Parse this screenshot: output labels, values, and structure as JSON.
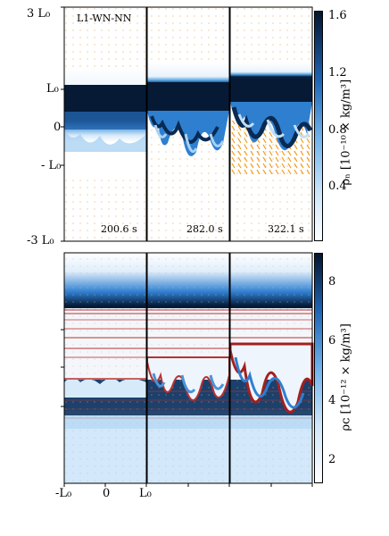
{
  "top": {
    "run_label": "L1-WN-NN",
    "y_ticks": [
      "3 L₀",
      "L₀",
      "0",
      "- L₀",
      "-3 L₀"
    ],
    "times": [
      "200.6 s",
      "282.0 s",
      "322.1 s"
    ],
    "colorbar": {
      "ticks": [
        "1.6",
        "1.2",
        "0.8",
        "0.4"
      ],
      "label": "ρₙ [10⁻¹⁰ × kg/m³]"
    }
  },
  "bottom": {
    "x_ticks": [
      "-L₀",
      "0",
      "L₀"
    ],
    "colorbar": {
      "ticks": [
        "8",
        "6",
        "4",
        "2"
      ],
      "label": "ρᴄ [10⁻¹² × kg/m³]"
    }
  },
  "colors": {
    "dark": "#05152e",
    "mid": "#2f7fd0",
    "light": "#cfe6fa",
    "contour": "#c03030",
    "arrow": "#f0a020"
  }
}
